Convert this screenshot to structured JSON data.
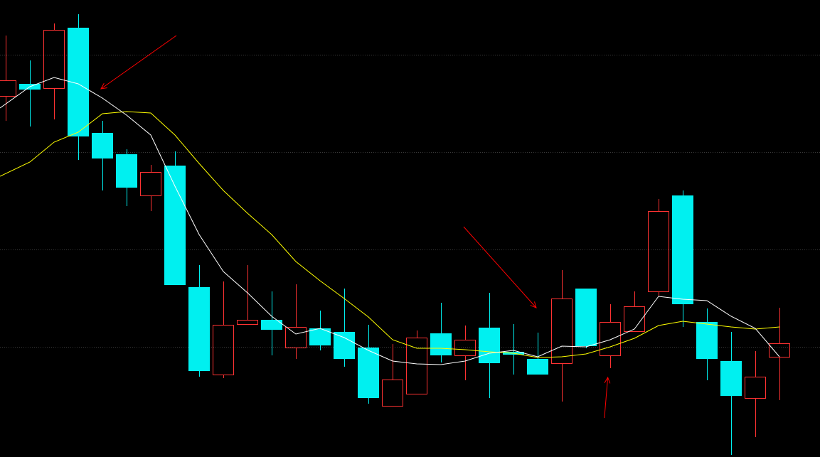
{
  "chart_data": {
    "type": "candlestick",
    "title": "",
    "xlabel": "",
    "ylabel": "",
    "ylim": [
      0,
      64.3
    ],
    "grid": {
      "horizontal": true,
      "style": "dotted",
      "levels": [
        56.6,
        42.9,
        29.2,
        15.5
      ]
    },
    "colors": {
      "background": "#000000",
      "up": "#ff3232",
      "down": "#00f0f0",
      "ma_short": "#ffffff",
      "ma_long": "#ffff00",
      "annotation": "#ff0000",
      "grid": "#3a3a3a"
    },
    "candles": [
      {
        "o": 50.8,
        "h": 59.3,
        "l": 47.3,
        "c": 53.0
      },
      {
        "o": 52.5,
        "h": 55.8,
        "l": 46.5,
        "c": 51.7
      },
      {
        "o": 51.9,
        "h": 61.0,
        "l": 47.5,
        "c": 60.1
      },
      {
        "o": 60.4,
        "h": 62.3,
        "l": 41.8,
        "c": 45.1
      },
      {
        "o": 45.6,
        "h": 47.3,
        "l": 37.5,
        "c": 42.0
      },
      {
        "o": 42.6,
        "h": 43.3,
        "l": 35.3,
        "c": 37.9
      },
      {
        "o": 36.8,
        "h": 41.1,
        "l": 34.6,
        "c": 40.1
      },
      {
        "o": 41.0,
        "h": 43.0,
        "l": 24.2,
        "c": 24.2
      },
      {
        "o": 23.9,
        "h": 27.0,
        "l": 11.3,
        "c": 12.1
      },
      {
        "o": 11.6,
        "h": 24.7,
        "l": 11.1,
        "c": 18.6
      },
      {
        "o": 18.7,
        "h": 27.0,
        "l": 18.7,
        "c": 19.3
      },
      {
        "o": 19.3,
        "h": 23.3,
        "l": 14.3,
        "c": 17.9
      },
      {
        "o": 15.4,
        "h": 24.3,
        "l": 13.8,
        "c": 18.3
      },
      {
        "o": 18.1,
        "h": 20.6,
        "l": 15.0,
        "c": 15.7
      },
      {
        "o": 17.6,
        "h": 23.7,
        "l": 12.7,
        "c": 13.8
      },
      {
        "o": 15.4,
        "h": 18.6,
        "l": 7.5,
        "c": 8.3
      },
      {
        "o": 7.2,
        "h": 15.9,
        "l": 7.2,
        "c": 10.9
      },
      {
        "o": 8.9,
        "h": 17.8,
        "l": 8.9,
        "c": 16.8
      },
      {
        "o": 17.4,
        "h": 21.7,
        "l": 13.3,
        "c": 14.3
      },
      {
        "o": 14.3,
        "h": 18.5,
        "l": 10.8,
        "c": 16.5
      },
      {
        "o": 18.2,
        "h": 23.1,
        "l": 8.3,
        "c": 13.2
      },
      {
        "o": 14.8,
        "h": 18.7,
        "l": 11.6,
        "c": 14.4
      },
      {
        "o": 13.8,
        "h": 17.5,
        "l": 11.6,
        "c": 11.6
      },
      {
        "o": 13.2,
        "h": 26.3,
        "l": 7.8,
        "c": 22.3
      },
      {
        "o": 23.7,
        "h": 23.7,
        "l": 15.3,
        "c": 15.6
      },
      {
        "o": 14.3,
        "h": 21.5,
        "l": 12.5,
        "c": 19.0
      },
      {
        "o": 17.7,
        "h": 23.3,
        "l": 17.7,
        "c": 21.2
      },
      {
        "o": 23.3,
        "h": 36.3,
        "l": 22.7,
        "c": 34.6
      },
      {
        "o": 36.8,
        "h": 37.5,
        "l": 18.3,
        "c": 21.5
      },
      {
        "o": 19.0,
        "h": 20.9,
        "l": 10.8,
        "c": 13.8
      },
      {
        "o": 13.5,
        "h": 17.6,
        "l": 0.3,
        "c": 8.6
      },
      {
        "o": 8.3,
        "h": 14.9,
        "l": 2.8,
        "c": 11.3
      },
      {
        "o": 14.1,
        "h": 21.0,
        "l": 8.0,
        "c": 16.0
      }
    ],
    "ma_short": [
      49.1,
      52.1,
      53.4,
      52.5,
      50.5,
      48.1,
      45.3,
      38.1,
      31.3,
      26.1,
      23.1,
      19.8,
      17.3,
      18.1,
      16.8,
      15.0,
      13.5,
      13.1,
      13.0,
      13.5,
      14.6,
      15.0,
      14.1,
      15.6,
      15.5,
      16.5,
      18.0,
      22.6,
      22.2,
      22.0,
      19.8,
      18.1,
      14.1
    ],
    "ma_long": [
      39.5,
      41.5,
      44.3,
      45.7,
      48.3,
      48.6,
      48.4,
      45.3,
      41.3,
      37.5,
      34.3,
      31.3,
      27.5,
      24.8,
      22.3,
      19.7,
      16.5,
      15.3,
      15.3,
      15.1,
      14.8,
      14.6,
      14.0,
      14.1,
      14.5,
      15.5,
      16.7,
      18.5,
      19.1,
      18.7,
      18.3,
      18.0,
      18.3
    ],
    "annotations": [
      {
        "type": "arrow",
        "from": [
          7.06,
          59.3
        ],
        "to": [
          3.94,
          51.8
        ]
      },
      {
        "type": "arrow",
        "from": [
          18.94,
          32.4
        ],
        "to": [
          21.94,
          21.0
        ]
      },
      {
        "type": "arrow",
        "from": [
          24.76,
          5.5
        ],
        "to": [
          24.9,
          11.2
        ]
      }
    ]
  }
}
